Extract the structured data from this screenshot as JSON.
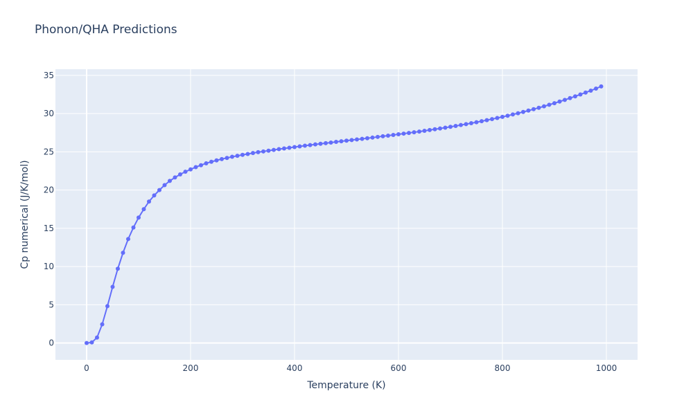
{
  "chart_data": {
    "type": "line",
    "title": "Phonon/QHA Predictions",
    "xlabel": "Temperature (K)",
    "ylabel": "Cp numerical (J/K/mol)",
    "xlim": [
      -60,
      1060
    ],
    "ylim": [
      -2.2,
      35.8
    ],
    "x_ticks": [
      0,
      200,
      400,
      600,
      800,
      1000
    ],
    "y_ticks": [
      0,
      5,
      10,
      15,
      20,
      25,
      30,
      35
    ],
    "grid": true,
    "colors": {
      "line": "#636efa",
      "plot_bg": "#e5ecf6",
      "grid": "#ffffff",
      "text": "#2a3f5f"
    },
    "series": [
      {
        "x": [
          0,
          10,
          20,
          30,
          40,
          50,
          60,
          70,
          80,
          90,
          100,
          110,
          120,
          130,
          140,
          150,
          160,
          170,
          180,
          190,
          200,
          210,
          220,
          230,
          240,
          250,
          260,
          270,
          280,
          290,
          300,
          310,
          320,
          330,
          340,
          350,
          360,
          370,
          380,
          390,
          400,
          410,
          420,
          430,
          440,
          450,
          460,
          470,
          480,
          490,
          500,
          510,
          520,
          530,
          540,
          550,
          560,
          570,
          580,
          590,
          600,
          610,
          620,
          630,
          640,
          650,
          660,
          670,
          680,
          690,
          700,
          710,
          720,
          730,
          740,
          750,
          760,
          770,
          780,
          790,
          800,
          810,
          820,
          830,
          840,
          850,
          860,
          870,
          880,
          890,
          900,
          910,
          920,
          930,
          940,
          950,
          960,
          970,
          980,
          990
        ],
        "y": [
          0.0,
          0.08,
          0.72,
          2.45,
          4.82,
          7.35,
          9.72,
          11.8,
          13.6,
          15.1,
          16.4,
          17.5,
          18.5,
          19.3,
          20.0,
          20.65,
          21.2,
          21.65,
          22.05,
          22.4,
          22.7,
          23.0,
          23.25,
          23.5,
          23.7,
          23.88,
          24.05,
          24.2,
          24.35,
          24.48,
          24.6,
          24.72,
          24.84,
          24.95,
          25.05,
          25.15,
          25.25,
          25.35,
          25.44,
          25.53,
          25.62,
          25.71,
          25.8,
          25.88,
          25.97,
          26.05,
          26.13,
          26.21,
          26.3,
          26.38,
          26.46,
          26.54,
          26.62,
          26.7,
          26.78,
          26.86,
          26.95,
          27.03,
          27.11,
          27.2,
          27.29,
          27.38,
          27.47,
          27.56,
          27.65,
          27.75,
          27.85,
          27.95,
          28.05,
          28.16,
          28.27,
          28.38,
          28.5,
          28.62,
          28.74,
          28.87,
          29.0,
          29.14,
          29.28,
          29.42,
          29.57,
          29.72,
          29.88,
          30.04,
          30.21,
          30.39,
          30.57,
          30.76,
          30.95,
          31.15,
          31.36,
          31.57,
          31.79,
          32.02,
          32.25,
          32.5,
          32.75,
          33.0,
          33.27,
          33.55
        ]
      }
    ]
  }
}
